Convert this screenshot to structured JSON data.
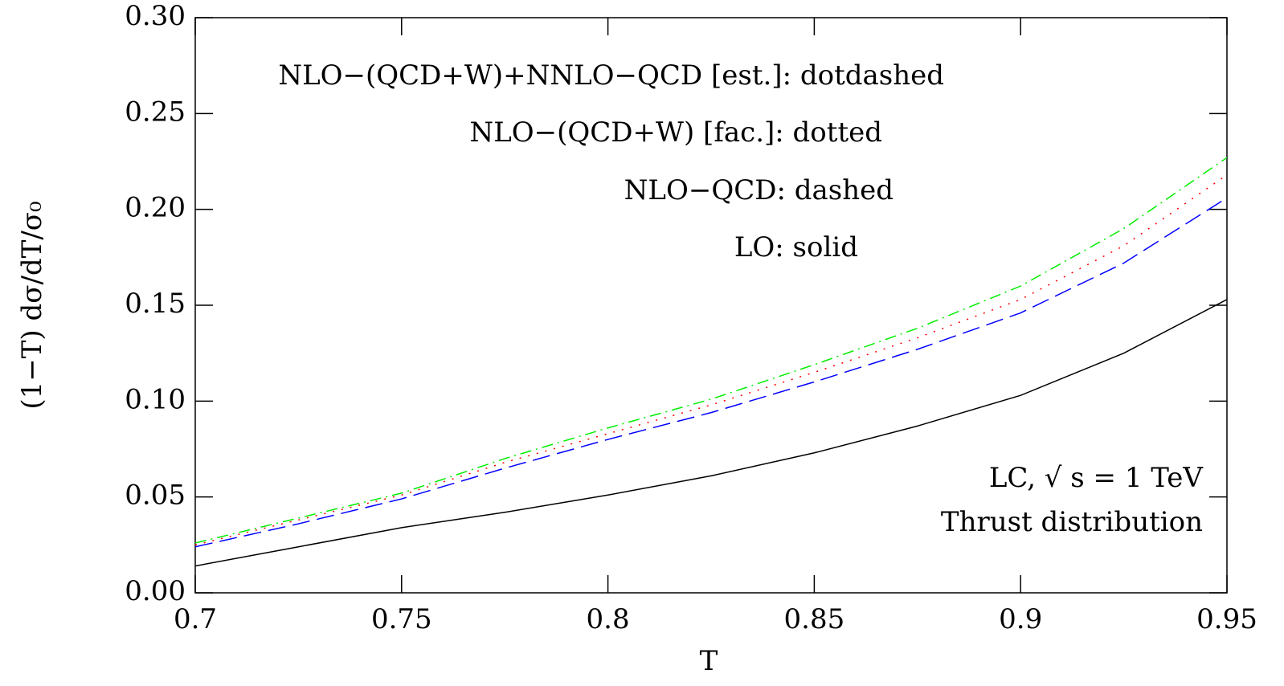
{
  "chart_data": {
    "type": "line",
    "x_label": "T",
    "y_label": "(1−T) dσ/dT/σ₀",
    "annotations": [
      "LC, √ s = 1 TeV",
      "Thrust distribution"
    ],
    "x": [
      0.7,
      0.725,
      0.75,
      0.775,
      0.8,
      0.825,
      0.85,
      0.875,
      0.9,
      0.925,
      0.95
    ],
    "series": [
      {
        "name": "NLO−(QCD+W)+NNLO−QCD [est.]: dotdashed",
        "color": "#00ee00",
        "style": "dotdashed",
        "values": [
          0.026,
          0.039,
          0.052,
          0.07,
          0.086,
          0.101,
          0.119,
          0.138,
          0.16,
          0.19,
          0.227
        ]
      },
      {
        "name": "NLO−(QCD+W) [fac.]: dotted",
        "color": "#ff0000",
        "style": "dotted",
        "values": [
          0.025,
          0.038,
          0.051,
          0.068,
          0.083,
          0.098,
          0.115,
          0.133,
          0.153,
          0.181,
          0.218
        ]
      },
      {
        "name": "NLO−QCD: dashed",
        "color": "#0000ff",
        "style": "dashed",
        "values": [
          0.024,
          0.036,
          0.049,
          0.065,
          0.08,
          0.094,
          0.11,
          0.127,
          0.146,
          0.172,
          0.206
        ]
      },
      {
        "name": "LO: solid",
        "color": "#000000",
        "style": "solid",
        "values": [
          0.014,
          0.024,
          0.034,
          0.042,
          0.051,
          0.061,
          0.073,
          0.087,
          0.103,
          0.125,
          0.153
        ]
      }
    ],
    "xlim": [
      0.7,
      0.95
    ],
    "xticks": [
      0.7,
      0.75,
      0.8,
      0.85,
      0.9,
      0.95
    ],
    "ylim": [
      0,
      0.3
    ],
    "yticks": [
      {
        "value": 0,
        "label": "0.00"
      },
      0.05,
      {
        "value": 0.1,
        "label": "0.10"
      },
      0.15,
      {
        "value": 0.2,
        "label": "0.20"
      },
      0.25,
      {
        "value": 0.3,
        "label": "0.30"
      }
    ],
    "grid": false
  }
}
